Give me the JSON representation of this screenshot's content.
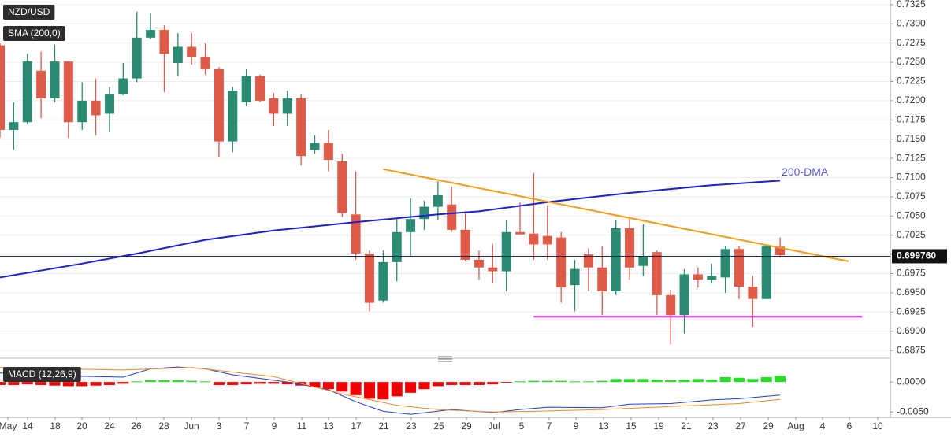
{
  "chart_data": [
    {
      "type": "candlestick",
      "title": "NZD/USD",
      "indicator": "SMA (200,0)",
      "x_axis_labels": [
        "May",
        "14",
        "18",
        "20",
        "24",
        "26",
        "28",
        "Jun",
        "3",
        "7",
        "9",
        "11",
        "13",
        "17",
        "21",
        "23",
        "25",
        "29",
        "Jul",
        "5",
        "7",
        "9",
        "13",
        "15",
        "19",
        "21",
        "23",
        "27",
        "29",
        "Aug",
        "4",
        "6",
        "10"
      ],
      "open": [
        0.7272,
        0.7162,
        0.7172,
        0.7239,
        0.7203,
        0.7251,
        0.7172,
        0.72,
        0.7183,
        0.7208,
        0.7229,
        0.7282,
        0.7292,
        0.7249,
        0.727,
        0.7257,
        0.7241,
        0.7147,
        0.7198,
        0.7232,
        0.7203,
        0.7183,
        0.7203,
        0.7136,
        0.7145,
        0.7121,
        0.7052,
        0.7001,
        0.694,
        0.699,
        0.7029,
        0.7046,
        0.7062,
        0.7065,
        0.7032,
        0.6993,
        0.6983,
        0.6978,
        0.7029,
        0.7027,
        0.7024,
        0.7022,
        0.696,
        0.7,
        0.6983,
        0.6952,
        0.7034,
        0.6985,
        0.7003,
        0.6947,
        0.6921,
        0.6974,
        0.6967,
        0.697,
        0.7007,
        0.6958,
        0.6942,
        0.701
      ],
      "high": [
        0.7275,
        0.7198,
        0.7261,
        0.7264,
        0.7273,
        0.7251,
        0.7224,
        0.7229,
        0.7218,
        0.7249,
        0.7316,
        0.7314,
        0.7298,
        0.7288,
        0.7288,
        0.7275,
        0.7244,
        0.7218,
        0.7241,
        0.7234,
        0.721,
        0.7213,
        0.7208,
        0.7155,
        0.7162,
        0.7131,
        0.7108,
        0.7005,
        0.7005,
        0.7046,
        0.7073,
        0.707,
        0.7095,
        0.7088,
        0.7054,
        0.7005,
        0.7013,
        0.7044,
        0.7068,
        0.7106,
        0.7063,
        0.7029,
        0.6993,
        0.7008,
        0.7011,
        0.7044,
        0.7049,
        0.7039,
        0.7005,
        0.6954,
        0.6981,
        0.6983,
        0.6988,
        0.7011,
        0.7011,
        0.6972,
        0.7013,
        0.7022
      ],
      "low": [
        0.7152,
        0.7136,
        0.7169,
        0.7177,
        0.7198,
        0.7152,
        0.7162,
        0.7155,
        0.7159,
        0.7207,
        0.7224,
        0.728,
        0.7211,
        0.7232,
        0.7247,
        0.7234,
        0.7126,
        0.7133,
        0.7193,
        0.7198,
        0.7167,
        0.7167,
        0.7116,
        0.7131,
        0.7108,
        0.7049,
        0.6993,
        0.6926,
        0.6937,
        0.6965,
        0.6998,
        0.7032,
        0.7044,
        0.7029,
        0.6991,
        0.6967,
        0.6962,
        0.6952,
        0.7026,
        0.6993,
        0.6993,
        0.6937,
        0.6926,
        0.6952,
        0.6921,
        0.6947,
        0.6967,
        0.6972,
        0.6921,
        0.6883,
        0.6897,
        0.6957,
        0.6962,
        0.695,
        0.6942,
        0.6906,
        0.6942,
        0.6996
      ],
      "close": [
        0.7162,
        0.7172,
        0.7251,
        0.7203,
        0.7251,
        0.7172,
        0.72,
        0.7181,
        0.7208,
        0.7229,
        0.7282,
        0.7292,
        0.7261,
        0.727,
        0.7257,
        0.7241,
        0.7147,
        0.7213,
        0.7232,
        0.72,
        0.7183,
        0.7203,
        0.7128,
        0.7145,
        0.7123,
        0.7054,
        0.7001,
        0.6937,
        0.699,
        0.7029,
        0.7046,
        0.7062,
        0.7077,
        0.7032,
        0.6993,
        0.6983,
        0.6978,
        0.7029,
        0.7026,
        0.7013,
        0.7013,
        0.6957,
        0.6981,
        0.6983,
        0.6952,
        0.7034,
        0.6983,
        0.6998,
        0.6947,
        0.6921,
        0.6974,
        0.6967,
        0.6972,
        0.7007,
        0.6958,
        0.6942,
        0.7011,
        0.6999
      ],
      "up_color": "#2b8a72",
      "down_color": "#de5b49",
      "lines": [
        {
          "name": "200-DMA",
          "color": "#1f1fd1",
          "x": [
            0,
            6,
            10,
            15,
            20,
            26,
            32,
            35,
            40,
            46,
            52,
            57
          ],
          "values": [
            0.697,
            0.6988,
            0.7001,
            0.7019,
            0.7031,
            0.7042,
            0.7052,
            0.7056,
            0.7068,
            0.708,
            0.709,
            0.7096
          ]
        },
        {
          "color": "#f59b16",
          "x": [
            28,
            62
          ],
          "values": [
            0.7111,
            0.6991
          ]
        },
        {
          "color": "#e01ee0",
          "x": [
            39,
            63
          ],
          "values": [
            0.6919,
            0.6919
          ]
        }
      ],
      "last_price": {
        "value": 0.69976,
        "label": "0.699760"
      },
      "ylim": [
        0.687,
        0.7331
      ],
      "yticks": [
        0.7325,
        {
          "value": 0.73,
          "label": "0.7300"
        },
        0.7275,
        {
          "value": 0.725,
          "label": "0.7250"
        },
        0.7225,
        {
          "value": 0.72,
          "label": "0.7200"
        },
        0.7175,
        {
          "value": 0.715,
          "label": "0.7150"
        },
        0.7125,
        {
          "value": 0.71,
          "label": "0.7100"
        },
        0.7075,
        {
          "value": 0.705,
          "label": "0.7050"
        },
        0.7025,
        {
          "value": 0.7,
          "label": "0.7000"
        },
        0.6975,
        {
          "value": 0.695,
          "label": "0.6950"
        },
        0.6925,
        {
          "value": 0.69,
          "label": "0.6900"
        },
        0.6875
      ],
      "grid": true
    },
    {
      "type": "macd",
      "title": "MACD (12,26,9)",
      "histogram": [
        -0.0005,
        -0.0005,
        -0.0004,
        -0.0005,
        -0.0006,
        -0.0007,
        -0.0007,
        -0.0006,
        -0.0005,
        -0.0003,
        0.0001,
        0.0003,
        0.0003,
        0.0003,
        0.0002,
        0.0001,
        -0.0005,
        -0.0005,
        -0.0004,
        -0.0003,
        -0.0003,
        -0.0004,
        -0.0006,
        -0.0009,
        -0.0012,
        -0.0016,
        -0.0022,
        -0.0028,
        -0.0029,
        -0.0024,
        -0.0018,
        -0.0012,
        -0.0007,
        -0.0005,
        -0.0005,
        -0.0005,
        -0.0004,
        -0.0001,
        0.0001,
        0.0002,
        0.0002,
        0.0002,
        0.0001,
        0.0001,
        0.0002,
        0.0005,
        0.0005,
        0.0005,
        0.0004,
        0.0003,
        0.0004,
        0.0005,
        0.0004,
        0.0008,
        0.0007,
        0.0005,
        0.0008,
        0.001
      ],
      "positive_color": "#22e022",
      "negative_color": "#f00000",
      "macd": {
        "color": "#1f3fd6",
        "x": [
          0,
          5,
          9,
          11,
          13,
          15,
          17,
          21,
          24,
          26,
          28,
          30,
          33,
          36,
          38,
          40,
          44,
          46,
          49,
          52,
          54,
          57
        ],
        "values": [
          0.0015,
          0.001,
          0.0008,
          0.0022,
          0.0025,
          0.0022,
          0.0012,
          0,
          -0.0013,
          -0.0033,
          -0.0049,
          -0.0054,
          -0.0046,
          -0.0051,
          -0.0046,
          -0.0042,
          -0.0043,
          -0.0037,
          -0.0036,
          -0.003,
          -0.0028,
          -0.0022
        ]
      },
      "signal": {
        "color": "#f08a24",
        "x": [
          0,
          9,
          14,
          20,
          25,
          29,
          32,
          36,
          39,
          44,
          49,
          54,
          57
        ],
        "values": [
          0.0024,
          0.002,
          0.0024,
          0.0009,
          -0.002,
          -0.0039,
          -0.0046,
          -0.005,
          -0.0049,
          -0.0046,
          -0.0041,
          -0.0036,
          -0.0029
        ]
      },
      "ylim": [
        -0.0059,
        0.0033
      ],
      "yticks": [
        {
          "value": 0,
          "label": "0.0000"
        },
        {
          "value": -0.005,
          "label": "-0.0050"
        }
      ]
    }
  ]
}
